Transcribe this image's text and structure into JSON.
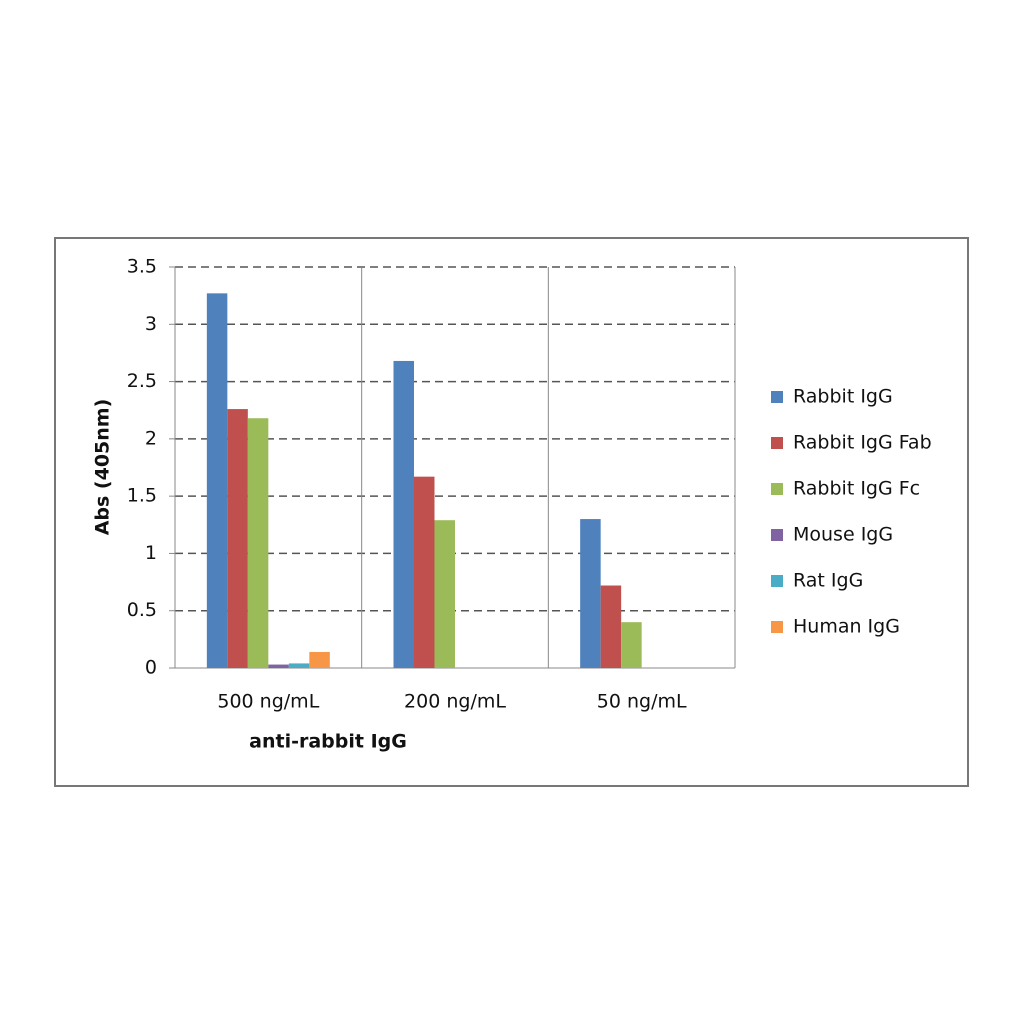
{
  "chart_data": {
    "type": "bar",
    "xlabel": "anti-rabbit IgG",
    "ylabel": "Abs (405nm)",
    "categories": [
      "500 ng/mL",
      "200 ng/mL",
      "50 ng/mL"
    ],
    "series": [
      {
        "name": "Rabbit IgG",
        "color": "#4f81bd",
        "values": [
          3.27,
          2.68,
          1.3
        ]
      },
      {
        "name": "Rabbit IgG Fab",
        "color": "#c0504d",
        "values": [
          2.26,
          1.67,
          0.72
        ]
      },
      {
        "name": "Rabbit IgG Fc",
        "color": "#9bbb59",
        "values": [
          2.18,
          1.29,
          0.4
        ]
      },
      {
        "name": "Mouse IgG",
        "color": "#8064a2",
        "values": [
          0.03,
          0,
          0
        ]
      },
      {
        "name": "Rat IgG",
        "color": "#4bacc6",
        "values": [
          0.04,
          0,
          0
        ]
      },
      {
        "name": "Human IgG",
        "color": "#f79646",
        "values": [
          0.14,
          0,
          0
        ]
      }
    ],
    "ylim": [
      0,
      3.5
    ],
    "yticks": [
      0,
      0.5,
      1,
      1.5,
      2,
      2.5,
      3,
      3.5
    ],
    "grid": true,
    "legend": "right"
  }
}
